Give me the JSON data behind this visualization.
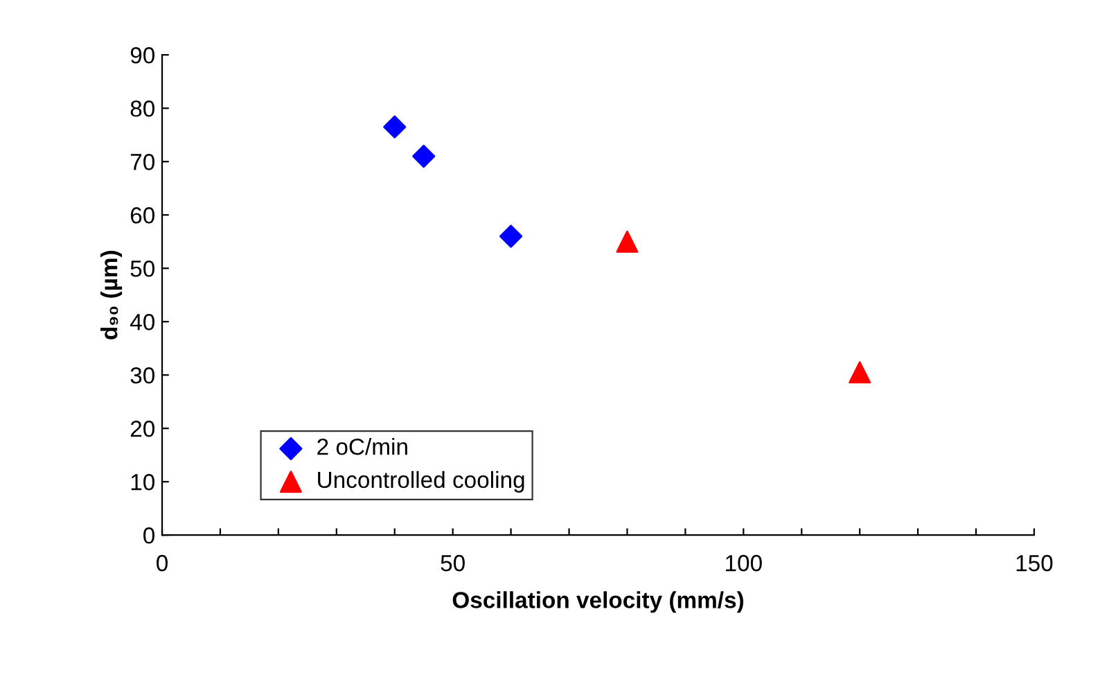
{
  "chart_data": {
    "type": "scatter",
    "xlabel": "Oscillation velocity (mm/s)",
    "ylabel": "d₉₀ (µm)",
    "xlim": [
      0,
      150
    ],
    "xticks": [
      0,
      {
        "value": 10,
        "label": null
      },
      {
        "value": 20,
        "label": null
      },
      {
        "value": 30,
        "label": null
      },
      {
        "value": 40,
        "label": null
      },
      50,
      {
        "value": 60,
        "label": null
      },
      {
        "value": 70,
        "label": null
      },
      {
        "value": 80,
        "label": null
      },
      {
        "value": 90,
        "label": null
      },
      100,
      {
        "value": 110,
        "label": null
      },
      {
        "value": 120,
        "label": null
      },
      {
        "value": 130,
        "label": null
      },
      {
        "value": 140,
        "label": null
      },
      150
    ],
    "ylim": [
      0,
      90
    ],
    "yticks": [
      0,
      10,
      20,
      30,
      40,
      50,
      60,
      70,
      80,
      90
    ],
    "grid": false,
    "legend": "bottom left",
    "series": [
      {
        "name": "2 oC/min",
        "color": "#0000ff",
        "marker": "diamond",
        "x": [
          40,
          45,
          60
        ],
        "values": [
          76.5,
          71,
          56
        ]
      },
      {
        "name": "Uncontrolled cooling",
        "color": "#ff0000",
        "marker": "triangle",
        "x": [
          80,
          120
        ],
        "values": [
          55,
          30.5
        ]
      }
    ]
  }
}
